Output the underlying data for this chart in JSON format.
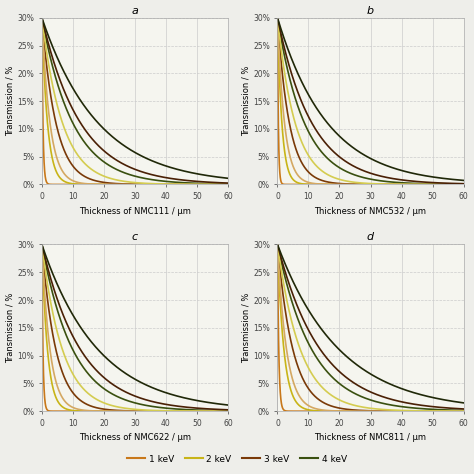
{
  "subplot_labels": [
    "a",
    "b",
    "c",
    "d"
  ],
  "xlabels": [
    "Thickness of NMC111 / μm",
    "Thickness of NMC532 / μm",
    "Thickness of NMC622 / μm",
    "Thickness of NMC811 / μm"
  ],
  "ylabel": "Transmission / %",
  "xlim": [
    0,
    60
  ],
  "ylim": [
    0,
    30
  ],
  "yticks": [
    0,
    5,
    10,
    15,
    20,
    25,
    30
  ],
  "ytick_labels": [
    "0%",
    "5%",
    "10%",
    "15%",
    "20%",
    "25%",
    "30%"
  ],
  "xticks": [
    0,
    10,
    20,
    30,
    40,
    50,
    60
  ],
  "background_color": "#f5f5ef",
  "grid_color": "#cccccc",
  "curves": {
    "NMC111": [
      {
        "mu": 2.8,
        "color": "#c8781a",
        "lw": 1.2
      },
      {
        "mu": 0.55,
        "color": "#c8b418",
        "lw": 1.2
      },
      {
        "mu": 0.22,
        "color": "#7a3a08",
        "lw": 1.2
      },
      {
        "mu": 0.1,
        "color": "#3a5010",
        "lw": 1.2
      },
      {
        "mu": 0.38,
        "color": "#d4a862",
        "lw": 1.2
      },
      {
        "mu": 0.15,
        "color": "#d4cc50",
        "lw": 1.2
      },
      {
        "mu": 0.08,
        "color": "#4a2005",
        "lw": 1.2
      },
      {
        "mu": 0.055,
        "color": "#202808",
        "lw": 1.2
      }
    ],
    "NMC532": [
      {
        "mu": 3.5,
        "color": "#c8781a",
        "lw": 1.2
      },
      {
        "mu": 0.7,
        "color": "#c8b418",
        "lw": 1.2
      },
      {
        "mu": 0.26,
        "color": "#7a3a08",
        "lw": 1.2
      },
      {
        "mu": 0.115,
        "color": "#3a5010",
        "lw": 1.2
      },
      {
        "mu": 0.44,
        "color": "#d4a862",
        "lw": 1.2
      },
      {
        "mu": 0.175,
        "color": "#d4cc50",
        "lw": 1.2
      },
      {
        "mu": 0.09,
        "color": "#4a2005",
        "lw": 1.2
      },
      {
        "mu": 0.062,
        "color": "#202808",
        "lw": 1.2
      }
    ],
    "NMC622": [
      {
        "mu": 2.8,
        "color": "#c8781a",
        "lw": 1.2
      },
      {
        "mu": 0.55,
        "color": "#c8b418",
        "lw": 1.2
      },
      {
        "mu": 0.22,
        "color": "#7a3a08",
        "lw": 1.2
      },
      {
        "mu": 0.1,
        "color": "#3a5010",
        "lw": 1.2
      },
      {
        "mu": 0.38,
        "color": "#d4a862",
        "lw": 1.2
      },
      {
        "mu": 0.15,
        "color": "#d4cc50",
        "lw": 1.2
      },
      {
        "mu": 0.08,
        "color": "#4a2005",
        "lw": 1.2
      },
      {
        "mu": 0.055,
        "color": "#202808",
        "lw": 1.2
      }
    ],
    "NMC811": [
      {
        "mu": 2.4,
        "color": "#c8781a",
        "lw": 1.2
      },
      {
        "mu": 0.48,
        "color": "#c8b418",
        "lw": 1.2
      },
      {
        "mu": 0.2,
        "color": "#7a3a08",
        "lw": 1.2
      },
      {
        "mu": 0.09,
        "color": "#3a5010",
        "lw": 1.2
      },
      {
        "mu": 0.34,
        "color": "#d4a862",
        "lw": 1.2
      },
      {
        "mu": 0.135,
        "color": "#d4cc50",
        "lw": 1.2
      },
      {
        "mu": 0.072,
        "color": "#4a2005",
        "lw": 1.2
      },
      {
        "mu": 0.05,
        "color": "#202808",
        "lw": 1.2
      }
    ]
  },
  "legend": [
    {
      "label": "1 keV",
      "color": "#c8781a"
    },
    {
      "label": "2 keV",
      "color": "#c8b418"
    },
    {
      "label": "3 keV",
      "color": "#7a3a08"
    },
    {
      "label": "4 keV",
      "color": "#3a5010"
    }
  ]
}
